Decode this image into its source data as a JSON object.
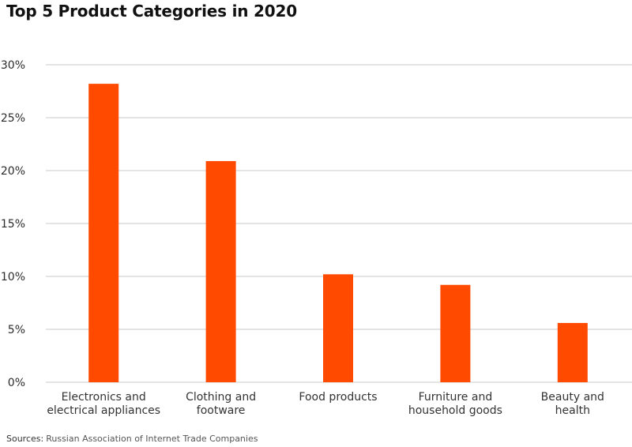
{
  "title": "Top 5 Product Categories in 2020",
  "source": {
    "label": "Sources:",
    "text": "Russian Association of Internet Trade Companies"
  },
  "colors": {
    "bar": "#ff4a00",
    "grid": "#c8c8c8",
    "text": "#2b2b2b"
  },
  "chart_data": {
    "type": "bar",
    "title": "Top 5 Product Categories in 2020",
    "xlabel": "",
    "ylabel": "",
    "categories": [
      [
        "Electronics and",
        "electrical appliances"
      ],
      [
        "Clothing and",
        "footware"
      ],
      [
        "Food products"
      ],
      [
        "Furniture and",
        "household goods"
      ],
      [
        "Beauty and",
        "health"
      ]
    ],
    "values": [
      28.2,
      20.9,
      10.2,
      9.2,
      5.6
    ],
    "ylim": [
      0,
      30
    ],
    "yticks": [
      0,
      5,
      10,
      15,
      20,
      25,
      30
    ],
    "ytick_labels": [
      "0%",
      "5%",
      "10%",
      "15%",
      "20%",
      "25%",
      "30%"
    ],
    "grid": true,
    "legend": "none"
  }
}
